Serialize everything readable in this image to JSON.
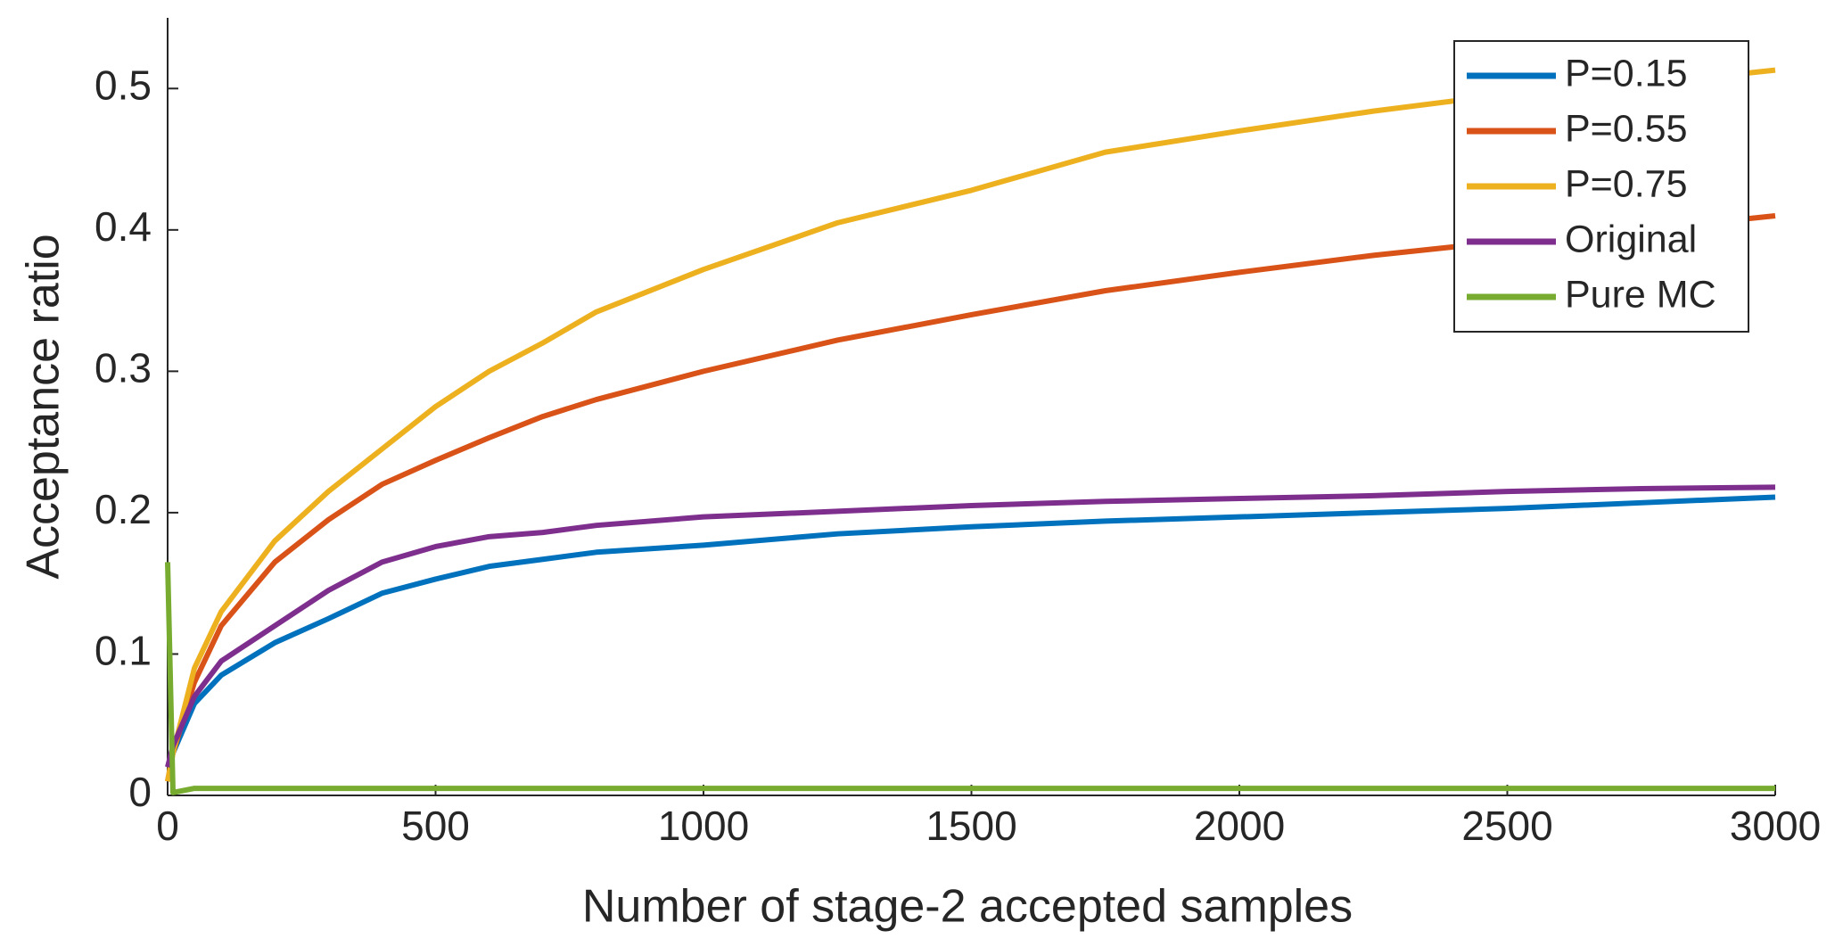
{
  "chart_data": {
    "type": "line",
    "xlabel": "Number of stage-2 accepted samples",
    "ylabel": "Acceptance ratio",
    "x": [
      0,
      10,
      50,
      100,
      200,
      300,
      400,
      500,
      600,
      700,
      800,
      1000,
      1250,
      1500,
      1750,
      2000,
      2250,
      2500,
      2750,
      3000
    ],
    "series": [
      {
        "name": "P=0.15",
        "color": "#0072bd",
        "values": [
          0.02,
          0.03,
          0.065,
          0.085,
          0.108,
          0.125,
          0.143,
          0.153,
          0.162,
          0.167,
          0.172,
          0.177,
          0.185,
          0.19,
          0.194,
          0.197,
          0.2,
          0.203,
          0.207,
          0.211
        ]
      },
      {
        "name": "P=0.55",
        "color": "#d95319",
        "values": [
          0.01,
          0.03,
          0.08,
          0.12,
          0.165,
          0.195,
          0.22,
          0.237,
          0.253,
          0.268,
          0.28,
          0.3,
          0.322,
          0.34,
          0.357,
          0.37,
          0.382,
          0.392,
          0.4,
          0.41
        ]
      },
      {
        "name": "P=0.75",
        "color": "#edb120",
        "values": [
          0.01,
          0.03,
          0.09,
          0.13,
          0.18,
          0.215,
          0.245,
          0.275,
          0.3,
          0.32,
          0.342,
          0.372,
          0.405,
          0.428,
          0.455,
          0.47,
          0.484,
          0.496,
          0.503,
          0.513
        ]
      },
      {
        "name": "Original",
        "color": "#7e2f8e",
        "values": [
          0.02,
          0.035,
          0.07,
          0.095,
          0.12,
          0.145,
          0.165,
          0.176,
          0.183,
          0.186,
          0.191,
          0.197,
          0.201,
          0.205,
          0.208,
          0.21,
          0.212,
          0.215,
          0.217,
          0.218
        ]
      },
      {
        "name": "Pure MC",
        "color": "#77ac30",
        "values": [
          0.165,
          0.002,
          0.005,
          0.005,
          0.005,
          0.005,
          0.005,
          0.005,
          0.005,
          0.005,
          0.005,
          0.005,
          0.005,
          0.005,
          0.005,
          0.005,
          0.005,
          0.005,
          0.005,
          0.005
        ]
      }
    ],
    "xlim": [
      0,
      3000
    ],
    "xticks": [
      0,
      500,
      1000,
      1500,
      2000,
      2500,
      3000
    ],
    "ylim": [
      0,
      0.55
    ],
    "yticks": [
      0,
      0.1,
      0.2,
      0.3,
      0.4,
      0.5
    ],
    "legend": "top-right"
  }
}
